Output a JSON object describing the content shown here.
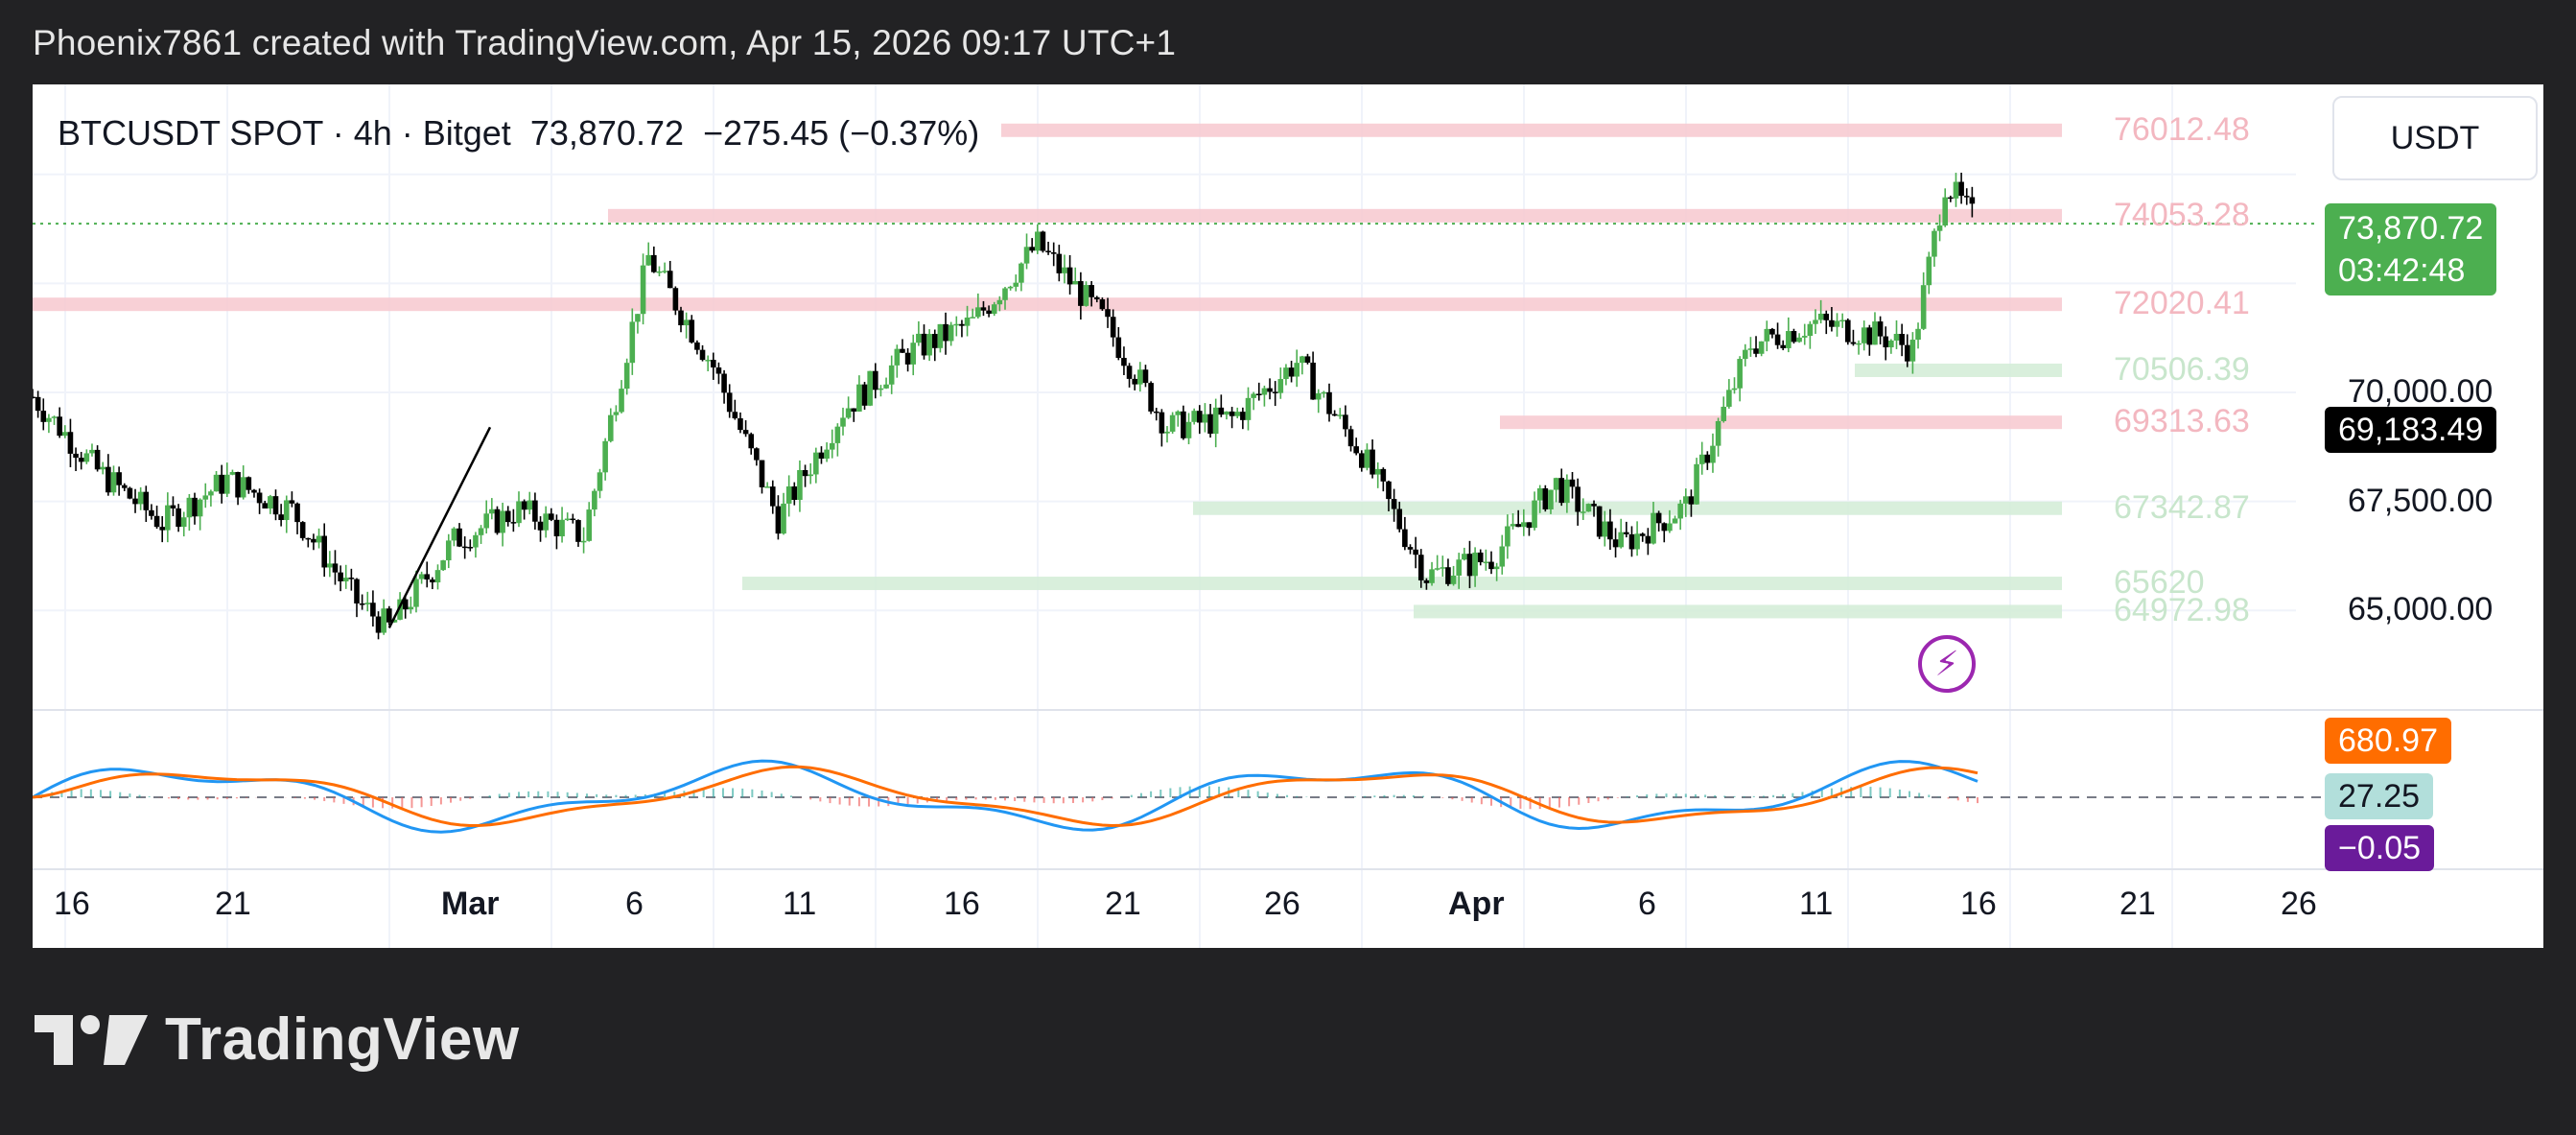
{
  "header": {
    "text": "Phoenix7861 created with TradingView.com, Apr 15, 2026 09:17 UTC+1"
  },
  "legend": {
    "symbol": "BTCUSDT SPOT · 4h · Bitget",
    "last": "73,870.72",
    "change": "−275.45 (−0.37%)"
  },
  "unit": "USDT",
  "colors": {
    "up": "#4caf50",
    "down": "#000000",
    "resistance": "#f7c8cf",
    "support": "#d2ecd6",
    "macd": "#2196f3",
    "signal": "#ff6d00",
    "hist_pos": "#26a69a",
    "hist_neg": "#ef5350",
    "price_tag": "#4caf50",
    "macd_tag": "#ff6d00",
    "hist_tag": "#b2dfdb",
    "zero_tag": "#6a1b9a"
  },
  "price_tag": {
    "price": "73,870.72",
    "countdown": "03:42:48"
  },
  "crosshair_tag": "69,183.49",
  "y_axis": [
    "70,000.00",
    "67,500.00",
    "65,000.00"
  ],
  "levels": [
    {
      "label": "76012.48",
      "kind": "resistance"
    },
    {
      "label": "74053.28",
      "kind": "resistance"
    },
    {
      "label": "72020.41",
      "kind": "resistance"
    },
    {
      "label": "70506.39",
      "kind": "support"
    },
    {
      "label": "69313.63",
      "kind": "resistance"
    },
    {
      "label": "67342.87",
      "kind": "support"
    },
    {
      "label": "65620",
      "kind": "support"
    },
    {
      "label": "64972.98",
      "kind": "support"
    }
  ],
  "macd_tags": {
    "macd": "680.97",
    "histogram": "27.25",
    "zero": "−0.05"
  },
  "x_axis": [
    {
      "label": "16",
      "bold": false
    },
    {
      "label": "21",
      "bold": false
    },
    {
      "label": "Mar",
      "bold": true
    },
    {
      "label": "6",
      "bold": false
    },
    {
      "label": "11",
      "bold": false
    },
    {
      "label": "16",
      "bold": false
    },
    {
      "label": "21",
      "bold": false
    },
    {
      "label": "26",
      "bold": false
    },
    {
      "label": "Apr",
      "bold": true
    },
    {
      "label": "6",
      "bold": false
    },
    {
      "label": "11",
      "bold": false
    },
    {
      "label": "16",
      "bold": false
    },
    {
      "label": "21",
      "bold": false
    },
    {
      "label": "26",
      "bold": false
    }
  ],
  "footer": {
    "brand": "TradingView"
  },
  "chart_data": {
    "type": "line",
    "symbol": "BTCUSDT",
    "interval": "4h",
    "y_unit": "USDT",
    "ylim": [
      63500,
      77000
    ],
    "x_range": [
      "2026-02-14",
      "2026-04-30"
    ],
    "series": [
      {
        "name": "BTCUSDT",
        "x": [
          "2026-02-14",
          "2026-02-16",
          "2026-02-18",
          "2026-02-20",
          "2026-02-22",
          "2026-02-24",
          "2026-02-25",
          "2026-02-27",
          "2026-03-01",
          "2026-03-03",
          "2026-03-05",
          "2026-03-07",
          "2026-03-09",
          "2026-03-11",
          "2026-03-13",
          "2026-03-15",
          "2026-03-17",
          "2026-03-19",
          "2026-03-21",
          "2026-03-23",
          "2026-03-25",
          "2026-03-27",
          "2026-03-29",
          "2026-03-31",
          "2026-04-02",
          "2026-04-04",
          "2026-04-06",
          "2026-04-08",
          "2026-04-10",
          "2026-04-12",
          "2026-04-13",
          "2026-04-14",
          "2026-04-15"
        ],
        "values": [
          69900,
          68200,
          67000,
          68000,
          67300,
          65200,
          64600,
          66600,
          67300,
          66700,
          73100,
          70600,
          67100,
          69600,
          70900,
          71600,
          73400,
          71700,
          69200,
          69400,
          70700,
          68600,
          65800,
          66200,
          67900,
          66500,
          67400,
          71100,
          71600,
          71300,
          71000,
          74800,
          73870
        ]
      }
    ],
    "levels": [
      76012.48,
      74053.28,
      72020.41,
      70506.39,
      69313.63,
      67342.87,
      65620,
      64972.98
    ],
    "current_price": 73870.72,
    "macd": {
      "macd_last": 680.97,
      "histogram_last": 27.25,
      "zero": -0.05
    }
  }
}
